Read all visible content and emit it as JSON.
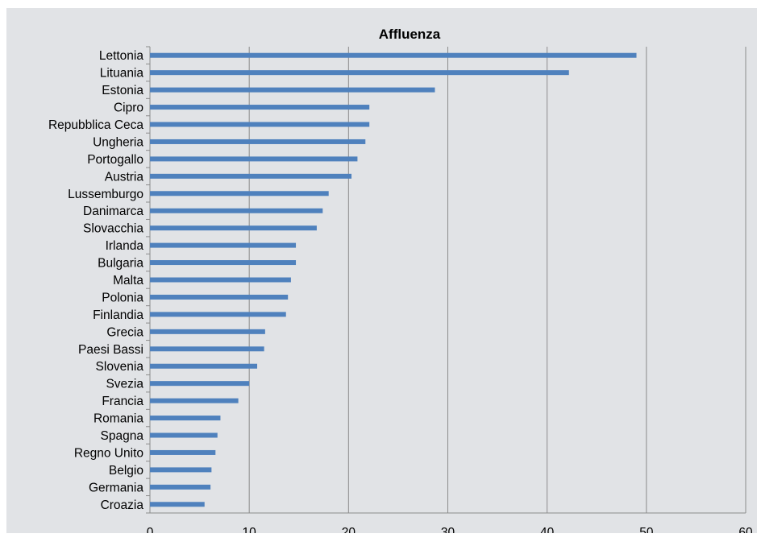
{
  "chart_data": {
    "type": "bar",
    "orientation": "horizontal",
    "title": "Affluenza",
    "xlabel": "",
    "ylabel": "",
    "xlim": [
      0,
      60
    ],
    "x_ticks": [
      0,
      10,
      20,
      30,
      40,
      50,
      60
    ],
    "grid": "vertical gridlines",
    "legend": "none",
    "bar_color": "#4f81bd",
    "categories": [
      "Lettonia",
      "Lituania",
      "Estonia",
      "Cipro",
      "Repubblica Ceca",
      "Ungheria",
      "Portogallo",
      "Austria",
      "Lussemburgo",
      "Danimarca",
      "Slovacchia",
      "Irlanda",
      "Bulgaria",
      "Malta",
      "Polonia",
      "Finlandia",
      "Grecia",
      "Paesi Bassi",
      "Slovenia",
      "Svezia",
      "Francia",
      "Romania",
      "Spagna",
      "Regno Unito",
      "Belgio",
      "Germania",
      "Croazia"
    ],
    "values": [
      49.0,
      42.2,
      28.7,
      22.1,
      22.1,
      21.7,
      20.9,
      20.3,
      18.0,
      17.4,
      16.8,
      14.7,
      14.7,
      14.2,
      13.9,
      13.7,
      11.6,
      11.5,
      10.8,
      10.0,
      8.9,
      7.1,
      6.8,
      6.6,
      6.2,
      6.1,
      5.5
    ]
  }
}
